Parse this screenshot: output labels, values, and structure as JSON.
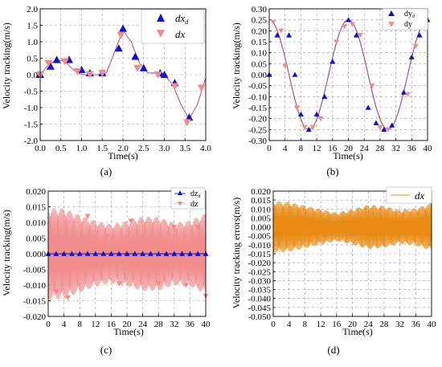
{
  "colors": {
    "desired": "#1010c8",
    "actual": "#f08c8c",
    "error": "#e88a14",
    "grid": "#9a9a9a"
  },
  "chart_data": [
    {
      "id": "a",
      "type": "scatter+line",
      "caption": "(a)",
      "xlabel": "Time(s)",
      "ylabel": "Velocity tracking(m/s)",
      "xlim": [
        0.0,
        4.0
      ],
      "ylim": [
        -2.0,
        2.0
      ],
      "xticks": [
        "0.0",
        "0.5",
        "1.0",
        "1.5",
        "2.0",
        "2.5",
        "3.0",
        "3.5",
        "4.0"
      ],
      "yticks": [
        "2.0",
        "1.5",
        "1.0",
        "0.5",
        "0.0",
        "-0.5",
        "-1.0",
        "-1.5",
        "-2.0"
      ],
      "grid": true,
      "legend_position": "top-right",
      "curve": {
        "x": [
          0,
          0.2,
          0.4,
          0.6,
          0.8,
          1.0,
          1.2,
          1.4,
          1.6,
          1.8,
          2.0,
          2.2,
          2.4,
          2.6,
          2.8,
          3.0,
          3.2,
          3.4,
          3.6,
          3.8,
          4.0
        ],
        "y": [
          0.0,
          0.3,
          0.45,
          0.4,
          0.15,
          0.0,
          0.0,
          0.0,
          0.05,
          0.7,
          1.35,
          1.0,
          0.35,
          0.05,
          0.05,
          0.0,
          -0.3,
          -0.9,
          -1.35,
          -0.9,
          -0.1
        ]
      },
      "series": [
        {
          "name": "dxd",
          "marker": "triangle-up",
          "x": [
            0.0,
            0.25,
            0.4,
            0.7,
            1.0,
            1.2,
            1.5,
            1.9,
            2.0,
            2.3,
            2.5,
            2.9,
            3.0,
            3.25,
            3.6
          ],
          "y": [
            0.0,
            0.25,
            0.45,
            0.45,
            0.15,
            0.05,
            0.05,
            0.8,
            1.4,
            0.55,
            0.2,
            0.05,
            0.0,
            -0.25,
            -1.3
          ]
        },
        {
          "name": "dx",
          "marker": "triangle-down",
          "x": [
            0.0,
            0.2,
            0.6,
            0.9,
            1.2,
            1.5,
            1.95,
            2.35,
            2.85,
            3.25,
            3.55,
            3.9
          ],
          "y": [
            0.0,
            0.35,
            0.4,
            0.1,
            0.0,
            0.05,
            1.2,
            0.2,
            0.0,
            -0.35,
            -1.45,
            -0.4
          ]
        }
      ]
    },
    {
      "id": "b",
      "type": "scatter+line",
      "caption": "(b)",
      "xlabel": "Time(s)",
      "ylabel": "Velocity tracking(m/s)",
      "xlim": [
        0,
        40
      ],
      "ylim": [
        -0.3,
        0.3
      ],
      "xticks": [
        "0",
        "4",
        "8",
        "12",
        "16",
        "20",
        "24",
        "28",
        "32",
        "36",
        "40"
      ],
      "yticks": [
        "0.30",
        "0.25",
        "0.20",
        "0.15",
        "0.10",
        "0.05",
        "0.00",
        "-0.05",
        "-0.10",
        "-0.15",
        "-0.20",
        "-0.25",
        "-0.30"
      ],
      "grid": true,
      "legend_position": "top-right",
      "curve_fn": "0.25*cos(2*pi*t/20)",
      "series": [
        {
          "name": "dyd",
          "marker": "triangle-up",
          "x": [
            0,
            2,
            5,
            6.5,
            8,
            10,
            12,
            14,
            16,
            20,
            22,
            25,
            27,
            29,
            31,
            34,
            36,
            38,
            40
          ],
          "y": [
            0.0,
            0.18,
            0.18,
            0.0,
            -0.18,
            -0.25,
            -0.18,
            -0.1,
            0.06,
            0.25,
            0.18,
            -0.15,
            -0.22,
            -0.25,
            -0.23,
            -0.08,
            0.08,
            0.18,
            0.25
          ]
        },
        {
          "name": "dy",
          "marker": "triangle-down",
          "x": [
            1,
            3,
            4,
            7,
            9,
            11,
            13,
            17,
            19,
            21,
            23,
            26,
            28,
            30,
            35,
            37
          ],
          "y": [
            0.24,
            0.2,
            0.04,
            -0.15,
            -0.24,
            -0.24,
            -0.2,
            0.15,
            0.22,
            0.23,
            0.18,
            -0.05,
            -0.24,
            -0.25,
            -0.09,
            0.13
          ]
        }
      ]
    },
    {
      "id": "c",
      "type": "line",
      "caption": "(c)",
      "xlabel": "Time(s)",
      "ylabel": "Velocity tracking(m/s)",
      "xlim": [
        0,
        40
      ],
      "ylim": [
        -0.02,
        0.02
      ],
      "xticks": [
        "0",
        "4",
        "8",
        "12",
        "16",
        "20",
        "24",
        "28",
        "32",
        "36",
        "40"
      ],
      "yticks": [
        "0.020",
        "0.015",
        "0.010",
        "0.005",
        "0.000",
        "-0.005",
        "-0.010",
        "-0.015",
        "-0.020"
      ],
      "grid": true,
      "legend_position": "top-right",
      "envelope": {
        "x": [
          0,
          4,
          8,
          12,
          16,
          20,
          24,
          28,
          32,
          36,
          40
        ],
        "amp": [
          0.0148,
          0.0145,
          0.0125,
          0.0105,
          0.0095,
          0.0105,
          0.012,
          0.0118,
          0.01,
          0.0105,
          0.013
        ]
      },
      "series": [
        {
          "name": "dzd",
          "marker": "triangle-up",
          "x": [
            0,
            2,
            4,
            6,
            8,
            10,
            12,
            14,
            16,
            18,
            20,
            22,
            24,
            26,
            28,
            30,
            32,
            34,
            36,
            38,
            40
          ],
          "y": [
            0,
            0,
            0,
            0,
            0,
            0,
            0,
            0,
            0,
            0,
            0,
            0,
            0,
            0,
            0,
            0,
            0,
            0,
            0,
            0,
            0
          ]
        },
        {
          "name": "dz",
          "marker": "triangle-down",
          "x": [
            2,
            5,
            10,
            12.5,
            15,
            18,
            21,
            24,
            28,
            32,
            35,
            38,
            40
          ],
          "y": [
            -0.012,
            -0.014,
            0.012,
            -0.0045,
            0.0055,
            -0.0095,
            0.0105,
            0.0055,
            -0.0095,
            0.0085,
            -0.01,
            0.0085,
            -0.0135
          ]
        }
      ]
    },
    {
      "id": "d",
      "type": "line",
      "caption": "(d)",
      "xlabel": "Time(s)",
      "ylabel": "Velocity tracking errors(m/s)",
      "xlim": [
        0,
        40
      ],
      "ylim": [
        -0.05,
        0.02
      ],
      "xticks": [
        "0",
        "4",
        "8",
        "12",
        "16",
        "20",
        "24",
        "28",
        "32",
        "36",
        "40"
      ],
      "yticks": [
        "0.020",
        "0.015",
        "0.010",
        "0.005",
        "0.000",
        "-0.005",
        "-0.010",
        "-0.015",
        "-0.020",
        "-0.025",
        "-0.030",
        "-0.035",
        "-0.040",
        "-0.045",
        "-0.050"
      ],
      "grid": true,
      "legend_position": "top-right",
      "envelope": {
        "x": [
          0,
          4,
          8,
          12,
          16,
          20,
          24,
          28,
          32,
          36,
          40
        ],
        "amp": [
          0.0145,
          0.014,
          0.012,
          0.01,
          0.008,
          0.01,
          0.0125,
          0.0118,
          0.0095,
          0.0105,
          0.0135
        ]
      },
      "series": [
        {
          "name": "dx",
          "marker": "line"
        }
      ]
    }
  ]
}
